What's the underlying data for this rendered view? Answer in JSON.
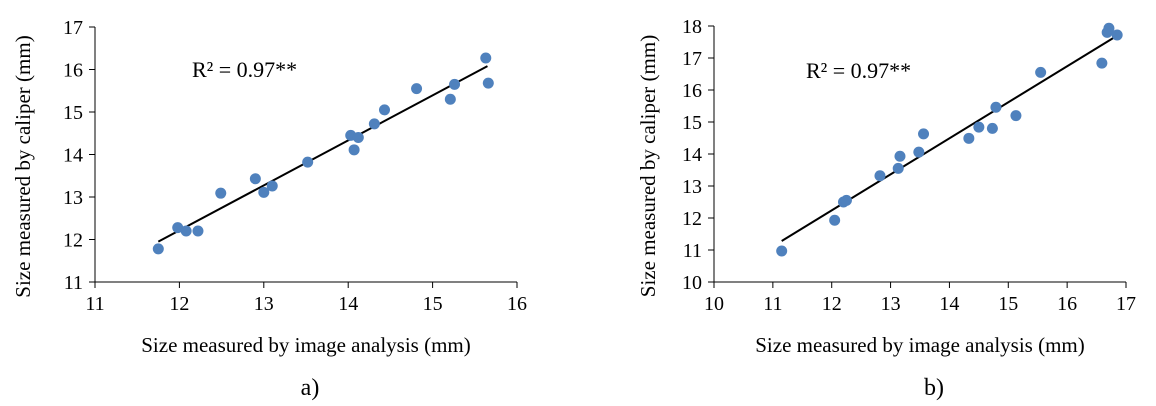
{
  "chart_data": [
    {
      "type": "scatter",
      "panel_label": "a)",
      "xlabel": "Size measured by image analysis (mm)",
      "ylabel": "Size measured by caliper (mm)",
      "annotation": "R² = 0.97**",
      "xlim": [
        11,
        16
      ],
      "ylim": [
        11,
        17
      ],
      "xticks": [
        11,
        12,
        13,
        14,
        15,
        16
      ],
      "yticks": [
        11,
        12,
        13,
        14,
        15,
        16,
        17
      ],
      "grid": false,
      "marker_color": "#4f81bd",
      "trendline_color": "#000000",
      "trendline": {
        "x": [
          11.75,
          15.65
        ],
        "y": [
          11.95,
          16.08
        ]
      },
      "points": [
        {
          "x": 11.75,
          "y": 11.78
        },
        {
          "x": 11.98,
          "y": 12.28
        },
        {
          "x": 12.08,
          "y": 12.2
        },
        {
          "x": 12.22,
          "y": 12.2
        },
        {
          "x": 12.49,
          "y": 13.09
        },
        {
          "x": 12.9,
          "y": 13.43
        },
        {
          "x": 13.0,
          "y": 13.11
        },
        {
          "x": 13.1,
          "y": 13.26
        },
        {
          "x": 13.52,
          "y": 13.82
        },
        {
          "x": 14.03,
          "y": 14.45
        },
        {
          "x": 14.07,
          "y": 14.11
        },
        {
          "x": 14.12,
          "y": 14.4
        },
        {
          "x": 14.31,
          "y": 14.72
        },
        {
          "x": 14.43,
          "y": 15.05
        },
        {
          "x": 14.81,
          "y": 15.55
        },
        {
          "x": 15.21,
          "y": 15.3
        },
        {
          "x": 15.26,
          "y": 15.65
        },
        {
          "x": 15.63,
          "y": 16.27
        },
        {
          "x": 15.66,
          "y": 15.68
        }
      ]
    },
    {
      "type": "scatter",
      "panel_label": "b)",
      "xlabel": "Size measured by image analysis (mm)",
      "ylabel": "Size measured by caliper (mm)",
      "annotation": "R² = 0.97**",
      "xlim": [
        10,
        17
      ],
      "ylim": [
        10,
        18
      ],
      "xticks": [
        10,
        11,
        12,
        13,
        14,
        15,
        16,
        17
      ],
      "yticks": [
        10,
        11,
        12,
        13,
        14,
        15,
        16,
        17,
        18
      ],
      "grid": false,
      "marker_color": "#4f81bd",
      "trendline_color": "#000000",
      "trendline": {
        "x": [
          11.15,
          16.85
        ],
        "y": [
          11.28,
          17.7
        ]
      },
      "points": [
        {
          "x": 11.15,
          "y": 10.97
        },
        {
          "x": 12.05,
          "y": 11.93
        },
        {
          "x": 12.2,
          "y": 12.5
        },
        {
          "x": 12.25,
          "y": 12.55
        },
        {
          "x": 12.82,
          "y": 13.32
        },
        {
          "x": 13.13,
          "y": 13.55
        },
        {
          "x": 13.16,
          "y": 13.93
        },
        {
          "x": 13.48,
          "y": 14.06
        },
        {
          "x": 13.56,
          "y": 14.63
        },
        {
          "x": 14.33,
          "y": 14.49
        },
        {
          "x": 14.5,
          "y": 14.84
        },
        {
          "x": 14.73,
          "y": 14.8
        },
        {
          "x": 14.79,
          "y": 15.46
        },
        {
          "x": 15.13,
          "y": 15.2
        },
        {
          "x": 15.55,
          "y": 16.55
        },
        {
          "x": 16.59,
          "y": 16.84
        },
        {
          "x": 16.68,
          "y": 17.8
        },
        {
          "x": 16.71,
          "y": 17.93
        },
        {
          "x": 16.85,
          "y": 17.72
        }
      ]
    }
  ]
}
